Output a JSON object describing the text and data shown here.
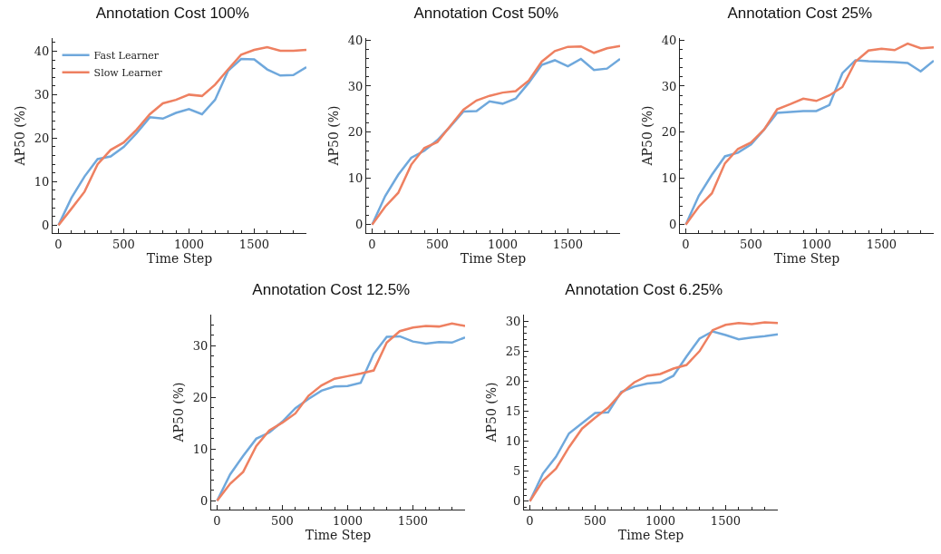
{
  "chart_data": [
    {
      "type": "line",
      "title": "Annotation Cost 100%",
      "xlabel": "Time Step",
      "ylabel": "AP50 (%)",
      "x": [
        0,
        100,
        200,
        300,
        400,
        500,
        600,
        700,
        800,
        900,
        1000,
        1100,
        1200,
        1300,
        1400,
        1500,
        1600,
        1700,
        1800,
        1900
      ],
      "xlim": [
        -45,
        1900
      ],
      "xticks": [
        0,
        500,
        1000,
        1500
      ],
      "ylim": [
        -1.8,
        43
      ],
      "yticks": [
        0,
        10,
        20,
        30,
        40
      ],
      "grid": false,
      "legend": "top left",
      "series": [
        {
          "name": "Fast Learner",
          "color": "#6fa8dc",
          "values": [
            0,
            6.3,
            11.2,
            15.2,
            15.8,
            18,
            21.2,
            24.8,
            24.5,
            25.8,
            26.7,
            25.5,
            28.8,
            35.5,
            38.2,
            38.1,
            35.8,
            34.4,
            34.5,
            36.3
          ]
        },
        {
          "name": "Slow Learner",
          "color": "#ee8061",
          "values": [
            0,
            3.8,
            7.7,
            14,
            17.3,
            19,
            22,
            25.5,
            28,
            28.8,
            30,
            29.7,
            32.3,
            35.8,
            39.2,
            40.3,
            40.9,
            40.1,
            40.1,
            40.3
          ]
        }
      ]
    },
    {
      "type": "line",
      "title": "Annotation Cost 50%",
      "xlabel": "Time Step",
      "ylabel": "AP50 (%)",
      "x": [
        0,
        100,
        200,
        300,
        400,
        500,
        600,
        700,
        800,
        900,
        1000,
        1100,
        1200,
        1300,
        1400,
        1500,
        1600,
        1700,
        1800,
        1900
      ],
      "xlim": [
        -45,
        1900
      ],
      "xticks": [
        0,
        500,
        1000,
        1500
      ],
      "ylim": [
        -1.8,
        40.4
      ],
      "yticks": [
        0,
        10,
        20,
        30,
        40
      ],
      "grid": false,
      "legend": false,
      "series": [
        {
          "color": "#6fa8dc",
          "values": [
            0,
            6.2,
            10.8,
            14.5,
            16,
            18.3,
            21.3,
            24.5,
            24.6,
            26.7,
            26.2,
            27.3,
            30.7,
            34.6,
            35.6,
            34.3,
            35.9,
            33.5,
            33.8,
            35.9
          ]
        },
        {
          "color": "#ee8061",
          "values": [
            0,
            3.9,
            6.9,
            13,
            16.6,
            17.9,
            21.4,
            24.9,
            26.9,
            27.9,
            28.6,
            28.9,
            31.2,
            35.3,
            37.6,
            38.5,
            38.6,
            37.2,
            38.2,
            38.7
          ]
        }
      ]
    },
    {
      "type": "line",
      "title": "Annotation Cost 25%",
      "xlabel": "Time Step",
      "ylabel": "AP50 (%)",
      "x": [
        0,
        100,
        200,
        300,
        400,
        500,
        600,
        700,
        800,
        900,
        1000,
        1100,
        1200,
        1300,
        1400,
        1500,
        1600,
        1700,
        1800,
        1900
      ],
      "xlim": [
        -45,
        1900
      ],
      "xticks": [
        0,
        500,
        1000,
        1500
      ],
      "ylim": [
        -1.8,
        40.4
      ],
      "yticks": [
        0,
        10,
        20,
        30,
        40
      ],
      "grid": false,
      "legend": false,
      "series": [
        {
          "color": "#6fa8dc",
          "values": [
            0,
            6.3,
            10.8,
            14.8,
            15.6,
            17.4,
            20.6,
            24.2,
            24.4,
            24.6,
            24.6,
            25.9,
            32.8,
            35.6,
            35.4,
            35.3,
            35.2,
            35,
            33.2,
            35.5
          ]
        },
        {
          "color": "#ee8061",
          "values": [
            0,
            3.9,
            6.8,
            13.3,
            16.4,
            17.8,
            20.6,
            25,
            26.1,
            27.3,
            26.8,
            28,
            29.8,
            35.3,
            37.7,
            38.1,
            37.8,
            39.2,
            38.2,
            38.4
          ]
        }
      ]
    },
    {
      "type": "line",
      "title": "Annotation Cost 12.5%",
      "xlabel": "Time Step",
      "ylabel": "AP50 (%)",
      "x": [
        0,
        100,
        200,
        300,
        400,
        500,
        600,
        700,
        800,
        900,
        1000,
        1100,
        1200,
        1300,
        1400,
        1500,
        1600,
        1700,
        1800,
        1900
      ],
      "xlim": [
        -45,
        1900
      ],
      "xticks": [
        0,
        500,
        1000,
        1500
      ],
      "ylim": [
        -1.7,
        36
      ],
      "yticks": [
        0,
        10,
        20,
        30
      ],
      "grid": false,
      "legend": false,
      "series": [
        {
          "color": "#6fa8dc",
          "values": [
            0,
            5.1,
            8.7,
            12,
            13.2,
            15.3,
            17.9,
            19.7,
            21.3,
            22.1,
            22.2,
            22.8,
            28.4,
            31.7,
            31.8,
            30.8,
            30.4,
            30.7,
            30.6,
            31.6
          ]
        },
        {
          "color": "#ee8061",
          "values": [
            0,
            3.3,
            5.6,
            10.6,
            13.6,
            15.1,
            16.9,
            20.3,
            22.3,
            23.6,
            24.1,
            24.6,
            25.2,
            30.6,
            32.8,
            33.5,
            33.8,
            33.7,
            34.3,
            33.8
          ]
        }
      ]
    },
    {
      "type": "line",
      "title": "Annotation Cost 6.25%",
      "xlabel": "Time Step",
      "ylabel": "AP50 (%)",
      "x": [
        0,
        100,
        200,
        300,
        400,
        500,
        600,
        700,
        800,
        900,
        1000,
        1100,
        1200,
        1300,
        1400,
        1500,
        1600,
        1700,
        1800,
        1900
      ],
      "xlim": [
        -45,
        1900
      ],
      "xticks": [
        0,
        500,
        1000,
        1500
      ],
      "ylim": [
        -1.4,
        31.1
      ],
      "yticks": [
        0,
        5,
        10,
        15,
        20,
        25,
        30
      ],
      "grid": false,
      "legend": false,
      "series": [
        {
          "color": "#6fa8dc",
          "values": [
            0,
            4.6,
            7.4,
            11.3,
            13,
            14.7,
            14.8,
            18.2,
            19.1,
            19.6,
            19.8,
            20.9,
            24.1,
            27.1,
            28.3,
            27.7,
            27,
            27.3,
            27.5,
            27.8
          ]
        },
        {
          "color": "#ee8061",
          "values": [
            0,
            3.4,
            5.4,
            9,
            12.1,
            13.9,
            15.6,
            18,
            19.8,
            20.9,
            21.2,
            22.1,
            22.7,
            25,
            28.5,
            29.4,
            29.7,
            29.5,
            29.8,
            29.7
          ]
        }
      ]
    }
  ]
}
